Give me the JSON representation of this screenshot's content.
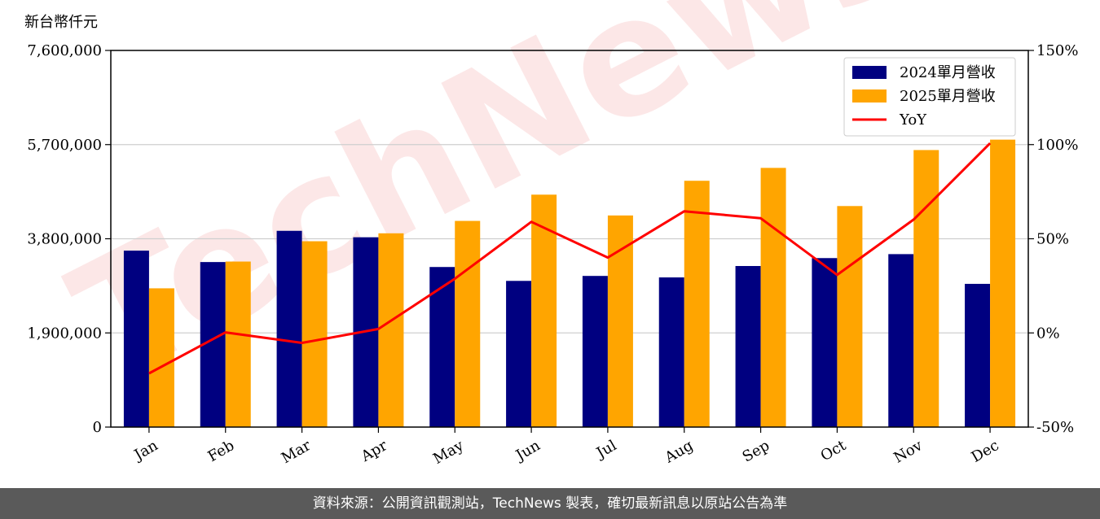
{
  "chart_data": {
    "type": "bar",
    "y_unit_label": "新台幣仟元",
    "categories": [
      "Jan",
      "Feb",
      "Mar",
      "Apr",
      "May",
      "Jun",
      "Jul",
      "Aug",
      "Sep",
      "Oct",
      "Nov",
      "Dec"
    ],
    "series": [
      {
        "name": "2024單月營收",
        "type": "bar",
        "color": "#000080",
        "values": [
          3560000,
          3330000,
          3960000,
          3830000,
          3230000,
          2950000,
          3050000,
          3020000,
          3250000,
          3410000,
          3490000,
          2890000
        ]
      },
      {
        "name": "2025單月營收",
        "type": "bar",
        "color": "#FFA500",
        "values": [
          2800000,
          3340000,
          3750000,
          3910000,
          4160000,
          4690000,
          4270000,
          4970000,
          5230000,
          4460000,
          5590000,
          5800000
        ]
      },
      {
        "name": "YoY",
        "type": "line",
        "axis": "right",
        "color": "#FF0000",
        "values": [
          -21.5,
          0.3,
          -5.3,
          2.1,
          28.8,
          59.0,
          40.0,
          64.6,
          60.9,
          30.8,
          60.2,
          100.7
        ]
      }
    ],
    "left_axis": {
      "ylim": [
        0,
        7600000
      ],
      "ticks": [
        0,
        1900000,
        3800000,
        5700000,
        7600000
      ],
      "tick_labels": [
        "0",
        "1,900,000",
        "3,800,000",
        "5,700,000",
        "7,600,000"
      ]
    },
    "right_axis": {
      "ylim": [
        -50,
        150
      ],
      "ticks": [
        -50,
        0,
        50,
        100,
        150
      ],
      "tick_labels": [
        "-50%",
        "0%",
        "50%",
        "100%",
        "150%"
      ]
    },
    "grid": true,
    "legend_position": "top-right"
  },
  "watermark": "TechNews",
  "footer_text": "資料來源：公開資訊觀測站，TechNews 製表，確切最新訊息以原站公告為準"
}
